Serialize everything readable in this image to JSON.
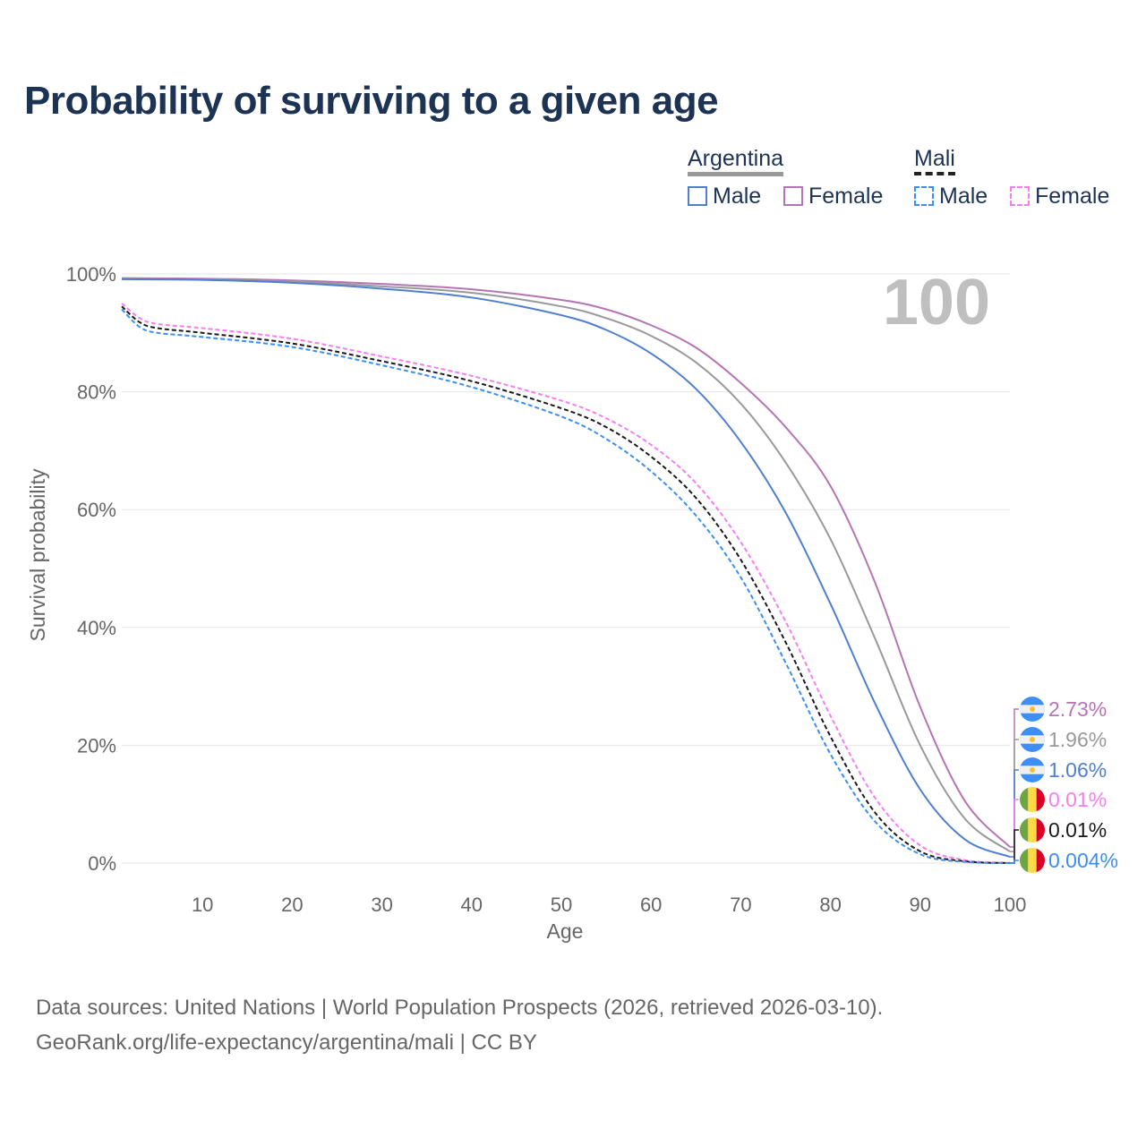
{
  "title": "Probability of surviving to a given age",
  "legend": {
    "groups": [
      {
        "name": "Argentina",
        "items": [
          "Male",
          "Female"
        ]
      },
      {
        "name": "Mali",
        "items": [
          "Male",
          "Female"
        ]
      }
    ]
  },
  "year_label": "100",
  "footer": {
    "line1": "Data sources: United Nations | World Population Prospects (2026, retrieved 2026-03-10).",
    "line2": "GeoRank.org/life-expectancy/argentina/mali | CC BY"
  },
  "chart_data": {
    "type": "line",
    "title": "Probability of surviving to a given age",
    "xlabel": "Age",
    "ylabel": "Survival probability",
    "xlim": [
      1,
      100
    ],
    "ylim": [
      0,
      100
    ],
    "xticks": [
      10,
      20,
      30,
      40,
      50,
      60,
      70,
      80,
      90,
      100
    ],
    "yticks": [
      {
        "v": 0,
        "l": "0%"
      },
      {
        "v": 20,
        "l": "20%"
      },
      {
        "v": 40,
        "l": "40%"
      },
      {
        "v": 60,
        "l": "60%"
      },
      {
        "v": 80,
        "l": "80%"
      },
      {
        "v": 100,
        "l": "100%"
      }
    ],
    "grid": true,
    "series": [
      {
        "name": "Argentina Female",
        "color": "#b574b3",
        "dash": false,
        "flag": "argentina",
        "end_label": "2.73%",
        "x": [
          1,
          10,
          20,
          30,
          40,
          50,
          55,
          60,
          65,
          70,
          75,
          80,
          85,
          90,
          95,
          100
        ],
        "y": [
          99.3,
          99.2,
          98.9,
          98.3,
          97.4,
          95.6,
          94,
          91.3,
          87.5,
          81.5,
          74,
          64,
          47.5,
          26.5,
          10.5,
          2.73
        ]
      },
      {
        "name": "Argentina",
        "color": "#999999",
        "dash": false,
        "flag": "argentina",
        "end_label": "1.96%",
        "x": [
          1,
          10,
          20,
          30,
          40,
          50,
          55,
          60,
          65,
          70,
          75,
          80,
          85,
          90,
          95,
          100
        ],
        "y": [
          99.2,
          99.1,
          98.7,
          97.9,
          96.8,
          94.5,
          92.5,
          89.5,
          85,
          78,
          68,
          55,
          38,
          20,
          7.5,
          1.96
        ]
      },
      {
        "name": "Argentina Male",
        "color": "#4f7fce",
        "dash": false,
        "flag": "argentina",
        "end_label": "1.06%",
        "x": [
          1,
          10,
          20,
          30,
          40,
          50,
          55,
          60,
          65,
          70,
          75,
          80,
          85,
          90,
          95,
          100
        ],
        "y": [
          99.1,
          99,
          98.5,
          97.5,
          96,
          93,
          90.5,
          86.5,
          80.5,
          71.5,
          59.5,
          44,
          27,
          12.5,
          4,
          1.06
        ]
      },
      {
        "name": "Mali Female",
        "color": "#f77ef2",
        "dash": true,
        "flag": "mali",
        "end_label": "0.01%",
        "x": [
          1,
          3,
          5,
          10,
          20,
          30,
          40,
          50,
          55,
          60,
          65,
          70,
          75,
          80,
          85,
          90,
          95,
          100
        ],
        "y": [
          95,
          92.5,
          91.5,
          90.8,
          89,
          86,
          82.7,
          78.5,
          75.5,
          71,
          64.5,
          54.5,
          41,
          25,
          11,
          3,
          0.5,
          0.01
        ]
      },
      {
        "name": "Mali",
        "color": "#1a1a1a",
        "dash": true,
        "flag": "mali",
        "end_label": "0.01%",
        "x": [
          1,
          3,
          5,
          10,
          20,
          30,
          40,
          50,
          55,
          60,
          65,
          70,
          75,
          80,
          85,
          90,
          95,
          100
        ],
        "y": [
          94.5,
          91.8,
          90.8,
          90,
          88.2,
          85.2,
          81.8,
          77.2,
          74,
          69,
          62,
          51.5,
          37.5,
          21.5,
          8.5,
          2,
          0.3,
          0.01
        ]
      },
      {
        "name": "Mali Male",
        "color": "#3b8ef5",
        "dash": true,
        "flag": "mali",
        "end_label": "0.004%",
        "x": [
          1,
          3,
          5,
          10,
          20,
          30,
          40,
          50,
          55,
          60,
          65,
          70,
          75,
          80,
          85,
          90,
          95,
          100
        ],
        "y": [
          94,
          91,
          90,
          89.3,
          87.6,
          84.5,
          80.8,
          75.8,
          72,
          66.5,
          59,
          48.5,
          34,
          18.5,
          7,
          1.5,
          0.2,
          0.004
        ]
      }
    ]
  }
}
